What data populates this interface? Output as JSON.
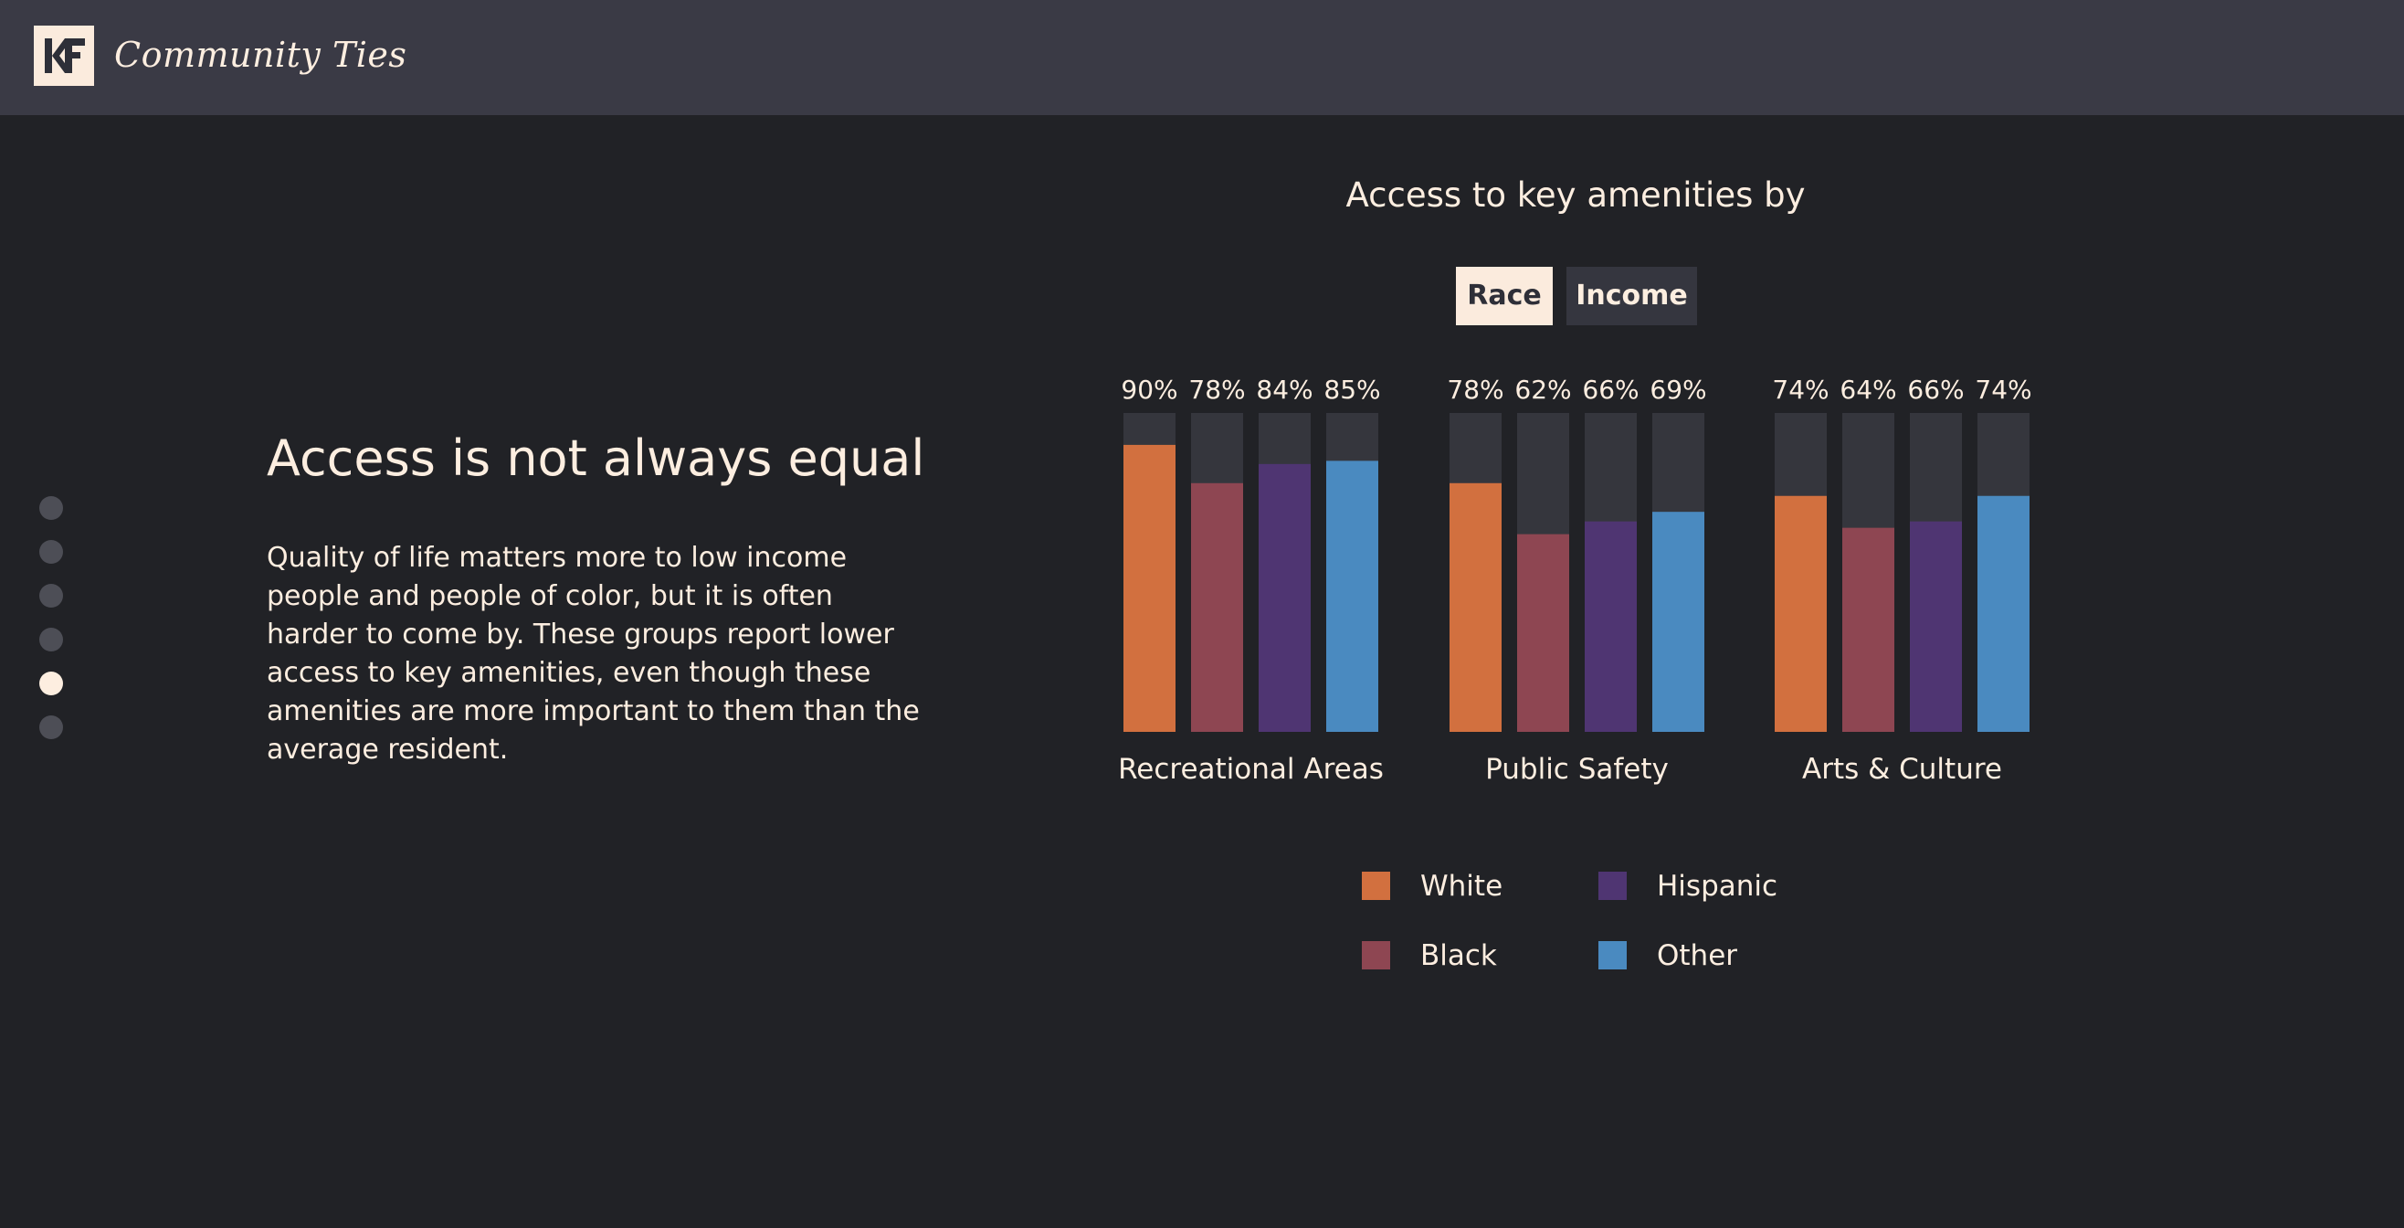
{
  "header": {
    "logo_text": "KF",
    "brand": "Community Ties"
  },
  "nav": {
    "dots": 6,
    "active_index": 4
  },
  "story": {
    "headline": "Access is not always equal",
    "body": "Quality of life matters more to low income people and people of color, but it is often harder to come by. These groups report lower access to key amenities, even though these amenities are more important to them than the average resident."
  },
  "toggle": {
    "race_label": "Race",
    "income_label": "Income",
    "selected": "Race"
  },
  "colors": {
    "White": "#d2703f",
    "Black": "#8e4652",
    "Hispanic": "#4f3572",
    "Other": "#4a8ac0",
    "track": "#35363d"
  },
  "chart_data": {
    "type": "bar",
    "title": "Access to key amenities by",
    "categories": [
      "Recreational Areas",
      "Public Safety",
      "Arts & Culture"
    ],
    "series": [
      {
        "name": "White",
        "values": [
          90,
          78,
          74
        ]
      },
      {
        "name": "Black",
        "values": [
          78,
          62,
          64
        ]
      },
      {
        "name": "Hispanic",
        "values": [
          84,
          66,
          66
        ]
      },
      {
        "name": "Other",
        "values": [
          85,
          69,
          74
        ]
      }
    ],
    "ylim": [
      0,
      100
    ],
    "unit": "%",
    "legend_position": "bottom"
  }
}
